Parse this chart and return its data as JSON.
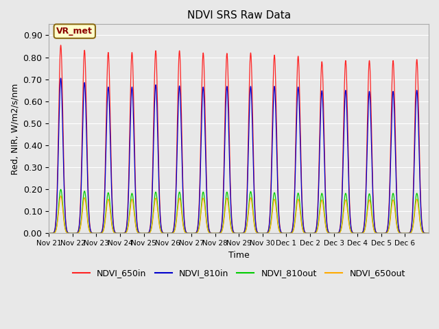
{
  "title": "NDVI SRS Raw Data",
  "xlabel": "Time",
  "ylabel": "Red, NIR, W/m2/s/nm",
  "ylim": [
    0.0,
    0.95
  ],
  "yticks": [
    0.0,
    0.1,
    0.2,
    0.3,
    0.4,
    0.5,
    0.6,
    0.7,
    0.8,
    0.9
  ],
  "background_color": "#e8e8e8",
  "annotation_text": "VR_met",
  "annotation_bg": "#ffffcc",
  "annotation_edge": "#8b6914",
  "colors": {
    "NDVI_650in": "#ff2222",
    "NDVI_810in": "#0000cc",
    "NDVI_810out": "#00cc00",
    "NDVI_650out": "#ffaa00"
  },
  "n_peaks": 16,
  "peaks_650in": [
    0.855,
    0.832,
    0.822,
    0.822,
    0.83,
    0.83,
    0.82,
    0.818,
    0.82,
    0.81,
    0.805,
    0.78,
    0.785,
    0.785,
    0.785,
    0.79
  ],
  "peaks_810in": [
    0.705,
    0.685,
    0.665,
    0.665,
    0.675,
    0.67,
    0.665,
    0.668,
    0.668,
    0.668,
    0.665,
    0.648,
    0.65,
    0.645,
    0.645,
    0.65
  ],
  "peaks_810out": [
    0.2,
    0.192,
    0.185,
    0.182,
    0.188,
    0.188,
    0.188,
    0.188,
    0.19,
    0.185,
    0.183,
    0.182,
    0.182,
    0.18,
    0.182,
    0.182
  ],
  "peaks_650out": [
    0.17,
    0.162,
    0.155,
    0.155,
    0.16,
    0.16,
    0.16,
    0.16,
    0.162,
    0.155,
    0.155,
    0.152,
    0.152,
    0.152,
    0.152,
    0.155
  ],
  "x_tick_labels": [
    "Nov 21",
    "Nov 22",
    "Nov 23",
    "Nov 24",
    "Nov 25",
    "Nov 26",
    "Nov 27",
    "Nov 28",
    "Nov 29",
    "Nov 30",
    "Dec 1",
    "Dec 2",
    "Dec 3",
    "Dec 4",
    "Dec 5",
    "Dec 6"
  ],
  "x_tick_positions": [
    0,
    1,
    2,
    3,
    4,
    5,
    6,
    7,
    8,
    9,
    10,
    11,
    12,
    13,
    14,
    15
  ]
}
